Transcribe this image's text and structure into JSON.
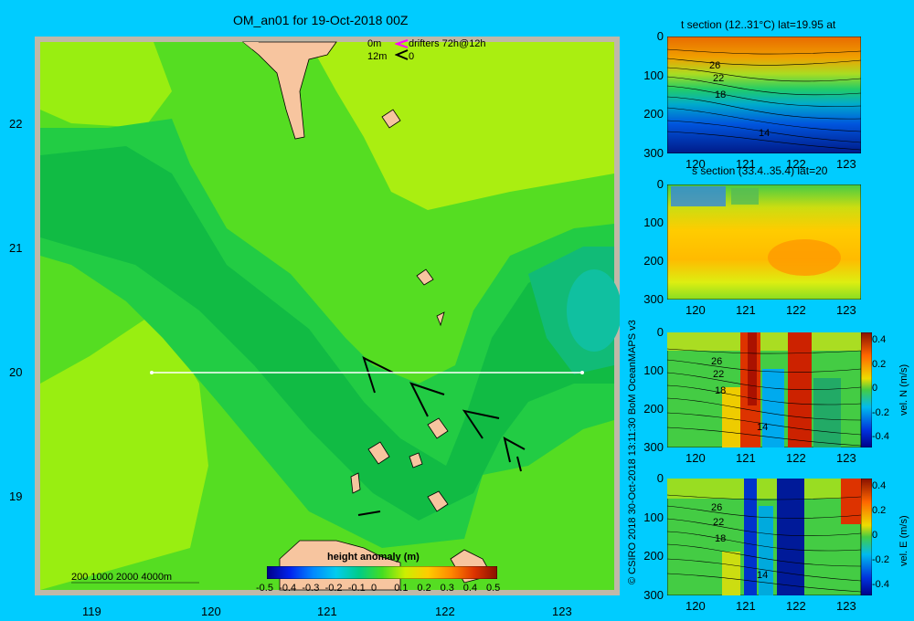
{
  "main_map": {
    "title": "OM_an01 for 19-Oct-2018 00Z",
    "legend": {
      "line1_depth": "0m",
      "line1_label": "drifters 72h@12h",
      "line2_depth": "12m",
      "line2_label": "0"
    },
    "lat_ticks": [
      "22",
      "21",
      "20",
      "19"
    ],
    "lon_ticks": [
      "119",
      "120",
      "121",
      "122",
      "123"
    ],
    "depth_contours_label": "200  1000  2000  4000m",
    "colorbar": {
      "title": "height anomaly (m)",
      "tick_labels": [
        "-0.5",
        "-0.4",
        "-0.3",
        "-0.2",
        "-0.1",
        "0",
        "0.1",
        "0.2",
        "0.3",
        "0.4",
        "0.5"
      ]
    },
    "section_line": {
      "lon_start": 119.5,
      "lon_end": 123.2,
      "lat": 20
    }
  },
  "panels": {
    "t_section": {
      "title": "t section (12..31°C) lat=19.95 at",
      "y_ticks": [
        "0",
        "100",
        "200",
        "300"
      ],
      "x_ticks": [
        "120",
        "121",
        "122",
        "123"
      ],
      "contour_labels": [
        "26",
        "22",
        "18",
        "14"
      ]
    },
    "s_section": {
      "title": "s section (33.4..35.4) lat=20",
      "y_ticks": [
        "0",
        "100",
        "200",
        "300"
      ],
      "x_ticks": [
        "120",
        "121",
        "122",
        "123"
      ]
    },
    "v_section": {
      "y_ticks": [
        "0",
        "100",
        "200",
        "300"
      ],
      "x_ticks": [
        "120",
        "121",
        "122",
        "123"
      ],
      "contour_labels": [
        "26",
        "22",
        "18",
        "14"
      ],
      "colorbar_ticks": [
        "0.4",
        "0.2",
        "0",
        "-0.2",
        "-0.4"
      ],
      "colorbar_label": "vel. N (m/s)"
    },
    "u_section": {
      "y_ticks": [
        "0",
        "100",
        "200",
        "300"
      ],
      "x_ticks": [
        "120",
        "121",
        "122",
        "123"
      ],
      "contour_labels": [
        "26",
        "22",
        "18",
        "14"
      ],
      "colorbar_ticks": [
        "0.4",
        "0.2",
        "0",
        "-0.2",
        "-0.4"
      ],
      "colorbar_label": "vel. E (m/s)"
    }
  },
  "side_credit": "© CSIRO 2018   30-Oct-2018 13:11:30 BoM OceanMAPS v3",
  "colors": {
    "background": "#00ccff",
    "land": "#f7c59f",
    "frame": "#c0b8a8"
  }
}
